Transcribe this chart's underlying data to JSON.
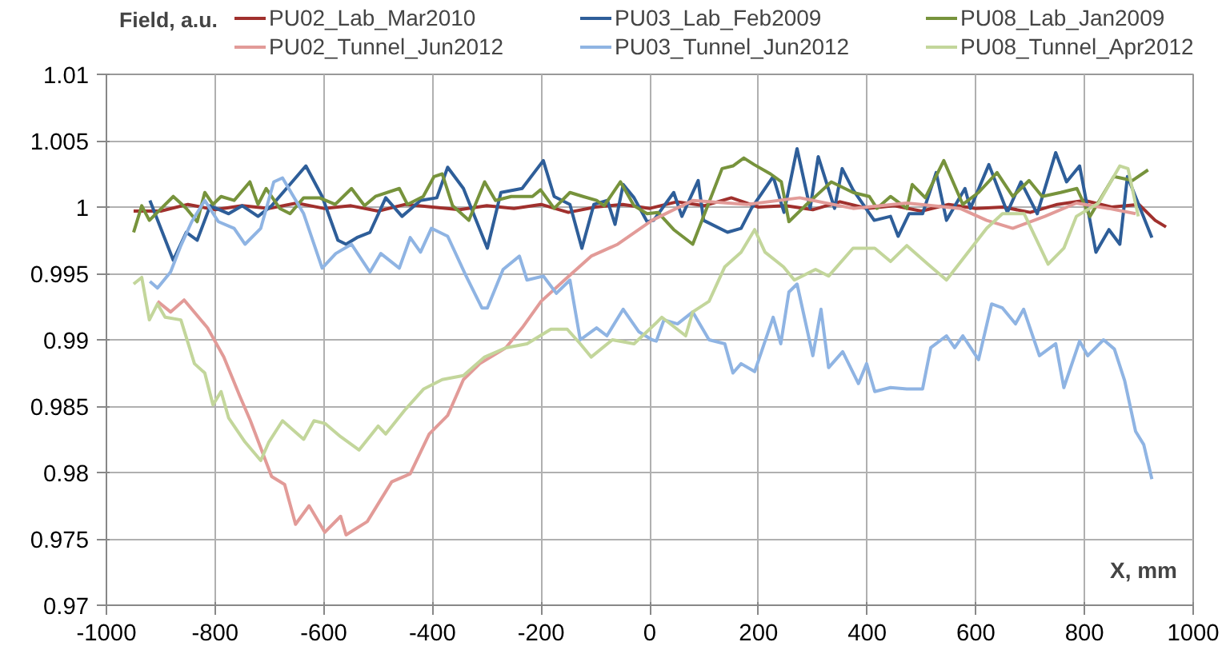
{
  "chart_data": {
    "type": "line",
    "ylabel": "Field, a.u.",
    "xlabel": "X, mm",
    "xlim": [
      -1000,
      1000
    ],
    "xticks": [
      -1000,
      -800,
      -600,
      -400,
      -200,
      0,
      200,
      400,
      600,
      800,
      1000
    ],
    "ylim": [
      0.97,
      1.01
    ],
    "yticks": [
      0.97,
      0.975,
      0.98,
      0.985,
      0.99,
      0.995,
      1,
      1.005,
      1.01
    ],
    "grid": true,
    "legend": "top",
    "line_style": "solid",
    "series": [
      {
        "name": "PU02_Lab_Mar2010",
        "color": "#a0302d",
        "x": [
          -950,
          -900,
          -850,
          -800,
          -750,
          -700,
          -650,
          -600,
          -550,
          -500,
          -450,
          -400,
          -350,
          -300,
          -250,
          -200,
          -150,
          -100,
          -50,
          0,
          50,
          100,
          150,
          200,
          250,
          300,
          350,
          400,
          450,
          500,
          550,
          600,
          650,
          700,
          750,
          800,
          850,
          900,
          930,
          950
        ],
        "values": [
          0.9997,
          0.9997,
          1.0002,
          0.9998,
          1.0001,
          0.9999,
          1.0003,
          0.9999,
          1.0001,
          0.9997,
          1.0002,
          1.0,
          0.9998,
          1.0001,
          0.9999,
          1.0002,
          0.9996,
          1.0,
          1.0002,
          0.9999,
          1.0004,
          1.0001,
          1.0007,
          1.0,
          1.0001,
          0.9998,
          1.0004,
          0.9999,
          1.0001,
          0.9997,
          1.0002,
          0.9999,
          1.0,
          0.9996,
          1.0002,
          1.0005,
          1.0,
          1.0002,
          0.999,
          0.9985
        ]
      },
      {
        "name": "PU03_Lab_Feb2009",
        "color": "#2e5e99",
        "x": [
          -920,
          -877,
          -853,
          -833,
          -809,
          -775,
          -750,
          -721,
          -696,
          -633,
          -603,
          -574,
          -559,
          -539,
          -515,
          -486,
          -456,
          -422,
          -392,
          -372,
          -343,
          -299,
          -274,
          -235,
          -196,
          -176,
          -147,
          -125,
          -103,
          -78,
          -64,
          -49,
          -29,
          -5,
          7,
          44,
          59,
          89,
          99,
          143,
          168,
          187,
          227,
          247,
          271,
          295,
          310,
          340,
          354,
          374,
          413,
          443,
          457,
          477,
          502,
          527,
          546,
          580,
          590,
          624,
          658,
          683,
          713,
          747,
          767,
          791,
          821,
          845,
          865,
          879,
          924
        ],
        "values": [
          1.0005,
          0.996,
          0.9981,
          0.9975,
          1.0001,
          0.9995,
          1.0001,
          0.9993,
          1.0001,
          1.0031,
          1.0008,
          0.9975,
          0.9972,
          0.9977,
          0.9981,
          1.0007,
          0.9993,
          1.0005,
          1.0007,
          1.003,
          1.0014,
          0.9969,
          1.0011,
          1.0014,
          1.0035,
          1.0008,
          1.0002,
          0.9969,
          1.0002,
          1.0005,
          0.9987,
          1.0017,
          1.0007,
          0.9989,
          0.999,
          1.0011,
          0.9993,
          1.002,
          0.999,
          0.9981,
          0.9984,
          0.9999,
          1.0023,
          0.9996,
          1.0044,
          0.9999,
          1.0038,
          0.9999,
          1.0029,
          1.0013,
          0.999,
          0.9993,
          0.9978,
          0.9995,
          0.9995,
          1.0026,
          0.999,
          1.0014,
          0.9999,
          1.0032,
          0.9996,
          1.0019,
          0.9995,
          1.0041,
          1.0019,
          1.0031,
          0.9966,
          0.9983,
          0.9972,
          1.0023,
          0.9977
        ]
      },
      {
        "name": "PU08_Lab_Jan2009",
        "color": "#77933c",
        "x": [
          -950,
          -935,
          -921,
          -877,
          -853,
          -833,
          -819,
          -804,
          -789,
          -765,
          -736,
          -721,
          -706,
          -681,
          -662,
          -637,
          -608,
          -579,
          -549,
          -525,
          -505,
          -461,
          -446,
          -417,
          -397,
          -382,
          -363,
          -333,
          -304,
          -284,
          -255,
          -216,
          -201,
          -176,
          -147,
          -123,
          -98,
          -84,
          -54,
          -29,
          -5,
          15,
          44,
          79,
          133,
          153,
          173,
          192,
          222,
          242,
          256,
          286,
          334,
          374,
          404,
          418,
          443,
          473,
          483,
          507,
          541,
          576,
          605,
          639,
          668,
          698,
          722,
          756,
          786,
          810,
          854,
          888,
          917
        ],
        "values": [
          0.9981,
          1.0001,
          0.999,
          1.0008,
          0.9999,
          0.9989,
          1.0011,
          1.0002,
          1.0008,
          1.0005,
          1.0019,
          1.0002,
          1.0014,
          0.9999,
          0.9995,
          1.0007,
          1.0007,
          1.0002,
          1.0014,
          1.0001,
          1.0008,
          1.0014,
          1.0002,
          1.0008,
          1.0023,
          1.0025,
          1.0001,
          0.999,
          1.0019,
          1.0005,
          1.0008,
          1.0008,
          1.0013,
          0.9999,
          1.0011,
          1.0008,
          1.0005,
          1.0001,
          1.0019,
          1.0001,
          0.9995,
          0.9996,
          0.9983,
          0.9972,
          1.0029,
          1.0031,
          1.0037,
          1.0032,
          1.0025,
          1.0019,
          0.9989,
          1.0001,
          1.0019,
          1.0011,
          1.0008,
          0.9999,
          1.0008,
          0.9999,
          1.0017,
          1.0007,
          1.0035,
          1.0002,
          1.0011,
          1.0026,
          1.0008,
          1.002,
          1.0008,
          1.0011,
          1.0014,
          0.9993,
          1.0023,
          1.002,
          1.0028
        ]
      },
      {
        "name": "PU02_Tunnel_Jun2012",
        "color": "#e29b98",
        "x": [
          -906,
          -882,
          -857,
          -814,
          -784,
          -755,
          -735,
          -696,
          -672,
          -652,
          -627,
          -598,
          -569,
          -559,
          -520,
          -475,
          -441,
          -406,
          -372,
          -343,
          -313,
          -265,
          -235,
          -200,
          -157,
          -108,
          -59,
          4,
          79,
          179,
          276,
          374,
          473,
          571,
          620,
          668,
          727,
          785,
          844,
          894
        ],
        "values": [
          0.9929,
          0.9921,
          0.993,
          0.9909,
          0.9887,
          0.9858,
          0.9839,
          0.9797,
          0.9791,
          0.9761,
          0.9775,
          0.9755,
          0.9767,
          0.9753,
          0.9763,
          0.9793,
          0.9799,
          0.9829,
          0.9843,
          0.987,
          0.9882,
          0.9894,
          0.9909,
          0.9929,
          0.9945,
          0.9963,
          0.9972,
          0.999,
          1.0005,
          1.0002,
          1.0007,
          0.9999,
          1.0003,
          0.9999,
          0.999,
          0.9984,
          0.9993,
          1.0003,
          0.9999,
          0.9995
        ]
      },
      {
        "name": "PU03_Tunnel_Jun2012",
        "color": "#8fb4e3",
        "x": [
          -920,
          -906,
          -882,
          -863,
          -843,
          -819,
          -794,
          -765,
          -745,
          -716,
          -692,
          -676,
          -637,
          -603,
          -578,
          -549,
          -515,
          -495,
          -461,
          -441,
          -422,
          -402,
          -372,
          -338,
          -309,
          -299,
          -270,
          -240,
          -226,
          -196,
          -172,
          -147,
          -128,
          -98,
          -79,
          -49,
          -20,
          4,
          12,
          26,
          51,
          79,
          109,
          138,
          153,
          168,
          193,
          227,
          241,
          256,
          271,
          300,
          315,
          329,
          355,
          384,
          399,
          414,
          443,
          473,
          502,
          517,
          546,
          561,
          576,
          605,
          629,
          649,
          673,
          688,
          717,
          747,
          762,
          791,
          806,
          835,
          855,
          874,
          894,
          909,
          924
        ],
        "values": [
          0.9944,
          0.9939,
          0.9951,
          0.9971,
          0.9989,
          1.0005,
          0.9989,
          0.9984,
          0.9972,
          0.9984,
          1.0019,
          1.0022,
          0.9995,
          0.9954,
          0.9965,
          0.9972,
          0.9951,
          0.9965,
          0.9954,
          0.9977,
          0.9966,
          0.9984,
          0.9978,
          0.9948,
          0.9924,
          0.9924,
          0.9953,
          0.9963,
          0.9945,
          0.9948,
          0.9935,
          0.9945,
          0.99,
          0.9909,
          0.9903,
          0.9923,
          0.9906,
          0.99,
          0.9899,
          0.9915,
          0.9912,
          0.9921,
          0.99,
          0.9897,
          0.9875,
          0.9882,
          0.9876,
          0.9917,
          0.9897,
          0.9936,
          0.9942,
          0.9888,
          0.9923,
          0.9879,
          0.9891,
          0.9867,
          0.9882,
          0.9861,
          0.9864,
          0.9863,
          0.9863,
          0.9894,
          0.9903,
          0.9894,
          0.9903,
          0.9885,
          0.9927,
          0.9924,
          0.9912,
          0.9923,
          0.9888,
          0.9897,
          0.9864,
          0.9899,
          0.9888,
          0.99,
          0.9893,
          0.9869,
          0.9831,
          0.9821,
          0.9795
        ]
      },
      {
        "name": "PU08_Tunnel_Apr2012",
        "color": "#c3d69b",
        "x": [
          -950,
          -935,
          -921,
          -906,
          -892,
          -863,
          -838,
          -819,
          -804,
          -789,
          -775,
          -745,
          -716,
          -701,
          -676,
          -637,
          -618,
          -598,
          -569,
          -535,
          -500,
          -486,
          -451,
          -416,
          -382,
          -343,
          -304,
          -265,
          -226,
          -182,
          -152,
          -128,
          -108,
          -69,
          -29,
          10,
          22,
          66,
          79,
          109,
          138,
          168,
          193,
          212,
          246,
          266,
          305,
          329,
          374,
          414,
          443,
          473,
          512,
          546,
          580,
          620,
          649,
          689,
          733,
          762,
          785,
          826,
          865,
          880,
          899
        ],
        "values": [
          0.9942,
          0.9947,
          0.9915,
          0.9927,
          0.9917,
          0.9915,
          0.9882,
          0.9875,
          0.9851,
          0.9861,
          0.9841,
          0.9823,
          0.9809,
          0.9823,
          0.9839,
          0.9825,
          0.9839,
          0.9837,
          0.9827,
          0.9817,
          0.9835,
          0.9829,
          0.9847,
          0.9863,
          0.987,
          0.9873,
          0.9887,
          0.9894,
          0.9897,
          0.9908,
          0.9908,
          0.9897,
          0.9887,
          0.99,
          0.9897,
          0.9912,
          0.9917,
          0.9903,
          0.9921,
          0.9929,
          0.9955,
          0.9966,
          0.9983,
          0.9966,
          0.9955,
          0.9945,
          0.9953,
          0.9948,
          0.9969,
          0.9969,
          0.9959,
          0.9971,
          0.9957,
          0.9945,
          0.9963,
          0.9984,
          0.9995,
          0.9995,
          0.9957,
          0.9969,
          0.9993,
          1.0003,
          1.0031,
          1.0029,
          0.9993
        ]
      }
    ]
  }
}
